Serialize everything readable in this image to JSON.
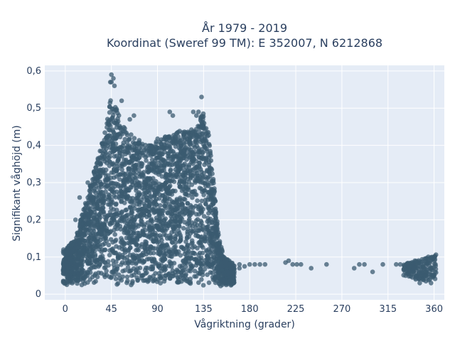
{
  "chart_data": {
    "type": "scatter",
    "title_line1": "År 1979 - 2019",
    "title_line2": "Koordinat (Sweref 99 TM): E 352007, N 6212868",
    "xlabel": "Vågriktning (grader)",
    "ylabel": "Signifikant våghöjd (m)",
    "xlim": [
      -20,
      370
    ],
    "ylim": [
      -0.015,
      0.615
    ],
    "x_ticks": [
      0,
      45,
      90,
      135,
      180,
      225,
      270,
      315,
      360
    ],
    "x_tick_labels": [
      "0",
      "45",
      "90",
      "135",
      "180",
      "225",
      "270",
      "315",
      "360"
    ],
    "y_ticks": [
      0,
      0.1,
      0.2,
      0.3,
      0.4,
      0.5,
      0.6
    ],
    "y_tick_labels": [
      "0",
      "0,1",
      "0,2",
      "0,3",
      "0,4",
      "0,5",
      "0,6"
    ],
    "grid": true,
    "plot_bgcolor": "#e5ecf6",
    "marker_color": "#3b5b70",
    "series": [
      {
        "name": "",
        "envelope": [
          [
            0,
            0.12
          ],
          [
            10,
            0.15
          ],
          [
            20,
            0.25
          ],
          [
            30,
            0.35
          ],
          [
            35,
            0.4
          ],
          [
            40,
            0.45
          ],
          [
            45,
            0.56
          ],
          [
            50,
            0.5
          ],
          [
            55,
            0.46
          ],
          [
            60,
            0.44
          ],
          [
            70,
            0.42
          ],
          [
            80,
            0.4
          ],
          [
            90,
            0.42
          ],
          [
            100,
            0.43
          ],
          [
            110,
            0.44
          ],
          [
            120,
            0.44
          ],
          [
            130,
            0.46
          ],
          [
            135,
            0.5
          ],
          [
            140,
            0.43
          ],
          [
            145,
            0.3
          ],
          [
            150,
            0.15
          ],
          [
            155,
            0.1
          ],
          [
            165,
            0.08
          ]
        ],
        "outliers": [
          [
            45,
            0.59
          ],
          [
            47,
            0.58
          ],
          [
            45,
            0.57
          ],
          [
            44,
            0.57
          ],
          [
            48,
            0.56
          ],
          [
            133,
            0.53
          ],
          [
            130,
            0.49
          ],
          [
            125,
            0.49
          ],
          [
            128,
            0.48
          ],
          [
            55,
            0.52
          ],
          [
            63,
            0.47
          ],
          [
            67,
            0.48
          ],
          [
            102,
            0.49
          ],
          [
            105,
            0.48
          ],
          [
            30,
            0.34
          ],
          [
            28,
            0.33
          ],
          [
            22,
            0.3
          ],
          [
            14,
            0.26
          ],
          [
            10,
            0.2
          ],
          [
            40,
            0.42
          ],
          [
            160,
            0.08
          ],
          [
            170,
            0.08
          ],
          [
            175,
            0.075
          ],
          [
            180,
            0.08
          ],
          [
            185,
            0.08
          ],
          [
            190,
            0.08
          ],
          [
            195,
            0.08
          ],
          [
            215,
            0.085
          ],
          [
            218,
            0.09
          ],
          [
            222,
            0.08
          ],
          [
            226,
            0.08
          ],
          [
            230,
            0.08
          ],
          [
            240,
            0.07
          ],
          [
            255,
            0.08
          ],
          [
            282,
            0.07
          ],
          [
            287,
            0.08
          ],
          [
            292,
            0.08
          ],
          [
            300,
            0.06
          ],
          [
            310,
            0.08
          ],
          [
            323,
            0.08
          ],
          [
            327,
            0.08
          ],
          [
            342,
            0.04
          ],
          [
            346,
            0.03
          ],
          [
            352,
            0.035
          ],
          [
            357,
            0.03
          ],
          [
            170,
            0.07
          ],
          [
            165,
            0.06
          ],
          [
            340,
            0.07
          ]
        ],
        "cluster_350": {
          "x_range": [
            330,
            362
          ],
          "y_range": [
            0.03,
            0.11
          ]
        }
      }
    ]
  }
}
